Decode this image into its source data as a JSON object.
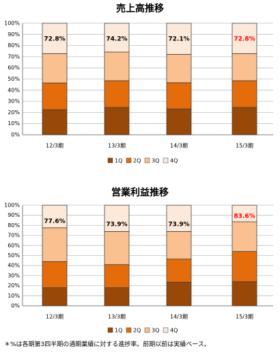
{
  "colors": {
    "q1": "#984807",
    "q2": "#E46C0A",
    "q3": "#FAC08F",
    "q4": "#FDE9D9",
    "highlight": "#FF0000",
    "normal": "#000000"
  },
  "footnote": "＊%は各期第3四半期の通期業績に対する進捗率。前期以前は実績ベース。",
  "chart_data": [
    {
      "type": "bar",
      "stacked": true,
      "title": "売上高推移",
      "categories": [
        "12/3期",
        "13/3期",
        "14/3期",
        "15/3期"
      ],
      "ylim": [
        0,
        100
      ],
      "yticks": [
        "0%",
        "10%",
        "20%",
        "30%",
        "40%",
        "50%",
        "60%",
        "70%",
        "80%",
        "90%",
        "100%"
      ],
      "grid": true,
      "legend_position": "bottom",
      "series": [
        {
          "name": "1Q",
          "values": [
            22.5,
            24.5,
            23.2,
            24.5
          ]
        },
        {
          "name": "2Q",
          "values": [
            24.0,
            24.0,
            23.5,
            24.0
          ]
        },
        {
          "name": "3Q",
          "values": [
            26.3,
            25.7,
            25.4,
            24.3
          ]
        },
        {
          "name": "4Q",
          "values": [
            27.2,
            25.8,
            27.9,
            27.2
          ]
        }
      ],
      "annotations": [
        "72.8%",
        "74.2%",
        "72.1%",
        "72.8%"
      ],
      "annotation_highlight": [
        false,
        false,
        false,
        true
      ],
      "annotation_y": [
        86,
        86,
        86,
        86
      ]
    },
    {
      "type": "bar",
      "stacked": true,
      "title": "営業利益推移",
      "categories": [
        "12/3期",
        "13/3期",
        "14/3期",
        "15/3期"
      ],
      "ylim": [
        0,
        100
      ],
      "yticks": [
        "0%",
        "10%",
        "20%",
        "30%",
        "40%",
        "50%",
        "60%",
        "70%",
        "80%",
        "90%",
        "100%"
      ],
      "grid": true,
      "legend_position": "bottom",
      "series": [
        {
          "name": "1Q",
          "values": [
            18.0,
            18.0,
            23.5,
            24.0
          ]
        },
        {
          "name": "2Q",
          "values": [
            26.0,
            23.0,
            23.0,
            30.0
          ]
        },
        {
          "name": "3Q",
          "values": [
            33.6,
            32.9,
            27.4,
            29.6
          ]
        },
        {
          "name": "4Q",
          "values": [
            22.4,
            26.1,
            26.1,
            16.4
          ]
        }
      ],
      "annotations": [
        "77.6%",
        "73.9%",
        "73.9%",
        "83.6%"
      ],
      "annotation_highlight": [
        false,
        false,
        false,
        true
      ],
      "annotation_y": [
        84,
        81,
        81,
        89
      ]
    }
  ]
}
